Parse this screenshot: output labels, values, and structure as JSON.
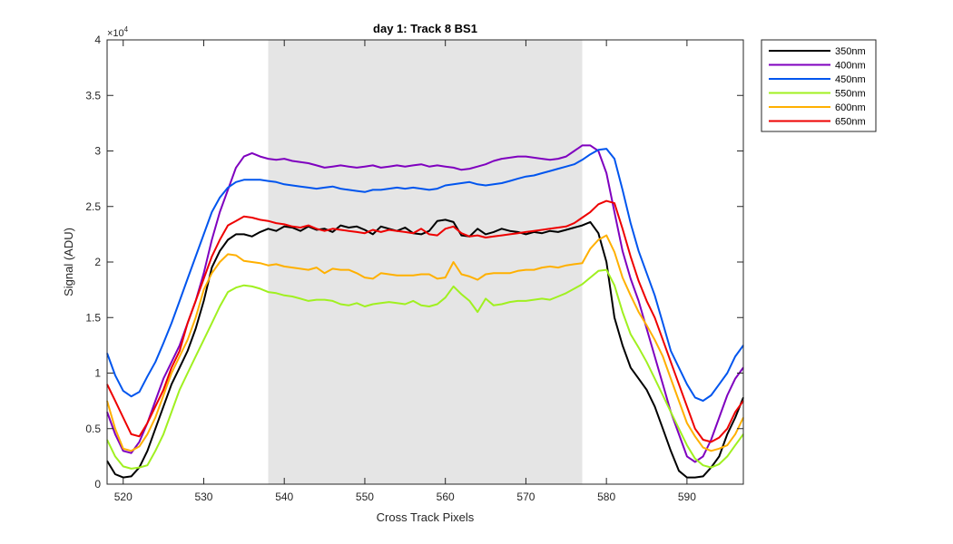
{
  "chart_data": {
    "type": "line",
    "title": "day 1: Track 8  BS1",
    "xlabel": "Cross Track Pixels",
    "ylabel": "Signal (ADU)",
    "y_multiplier_label": "×10",
    "y_multiplier_exponent": "4",
    "xlim": [
      518,
      597
    ],
    "ylim": [
      0,
      40000
    ],
    "x_ticks": [
      520,
      530,
      540,
      550,
      560,
      570,
      580,
      590
    ],
    "y_ticks": [
      0,
      5000,
      10000,
      15000,
      20000,
      25000,
      30000,
      35000,
      40000
    ],
    "y_tick_labels": [
      "0",
      "0.5",
      "1",
      "1.5",
      "2",
      "2.5",
      "3",
      "3.5",
      "4"
    ],
    "grid": false,
    "legend_position": "outside-right-top",
    "shaded_region": {
      "x_start": 538,
      "x_end": 577,
      "color": "#e5e5e5"
    },
    "x": [
      518,
      519,
      520,
      521,
      522,
      523,
      524,
      525,
      526,
      527,
      528,
      529,
      530,
      531,
      532,
      533,
      534,
      535,
      536,
      537,
      538,
      539,
      540,
      541,
      542,
      543,
      544,
      545,
      546,
      547,
      548,
      549,
      550,
      551,
      552,
      553,
      554,
      555,
      556,
      557,
      558,
      559,
      560,
      561,
      562,
      563,
      564,
      565,
      566,
      567,
      568,
      569,
      570,
      571,
      572,
      573,
      574,
      575,
      576,
      577,
      578,
      579,
      580,
      581,
      582,
      583,
      584,
      585,
      586,
      587,
      588,
      589,
      590,
      591,
      592,
      593,
      594,
      595,
      596,
      597
    ],
    "series": [
      {
        "name": "350nm",
        "color": "#000000",
        "values": [
          2100,
          900,
          600,
          700,
          1500,
          3000,
          5000,
          7000,
          9000,
          10500,
          12000,
          14000,
          16500,
          19500,
          21000,
          22000,
          22500,
          22500,
          22300,
          22700,
          23000,
          22800,
          23200,
          23100,
          22800,
          23200,
          22900,
          23000,
          22700,
          23300,
          23100,
          23200,
          22900,
          22500,
          23200,
          23000,
          22800,
          23100,
          22600,
          22500,
          22800,
          23700,
          23800,
          23600,
          22400,
          22300,
          23000,
          22500,
          22700,
          23000,
          22800,
          22700,
          22500,
          22700,
          22600,
          22800,
          22700,
          22900,
          23100,
          23300,
          23600,
          22600,
          20000,
          15000,
          12500,
          10500,
          9500,
          8500,
          7000,
          5000,
          3000,
          1200,
          600,
          600,
          700,
          1500,
          2500,
          4500,
          6000,
          7800
        ]
      },
      {
        "name": "400nm",
        "color": "#7f00bf",
        "values": [
          6500,
          4500,
          3000,
          2800,
          3800,
          5500,
          7500,
          9500,
          11000,
          12500,
          14500,
          16500,
          19000,
          22000,
          24500,
          26500,
          28500,
          29500,
          29800,
          29500,
          29300,
          29200,
          29300,
          29100,
          29000,
          28900,
          28700,
          28500,
          28600,
          28700,
          28600,
          28500,
          28600,
          28700,
          28500,
          28600,
          28700,
          28600,
          28700,
          28800,
          28600,
          28700,
          28600,
          28500,
          28300,
          28400,
          28600,
          28800,
          29100,
          29300,
          29400,
          29500,
          29500,
          29400,
          29300,
          29200,
          29300,
          29500,
          30000,
          30500,
          30500,
          30000,
          28000,
          24500,
          21000,
          18500,
          16500,
          14000,
          11500,
          9000,
          6500,
          4500,
          2500,
          2000,
          2500,
          4000,
          6000,
          8000,
          9500,
          10500
        ]
      },
      {
        "name": "450nm",
        "color": "#0055ee",
        "values": [
          11800,
          9800,
          8400,
          7900,
          8300,
          9700,
          11000,
          12700,
          14500,
          16500,
          18500,
          20500,
          22500,
          24500,
          25800,
          26700,
          27200,
          27400,
          27400,
          27400,
          27300,
          27200,
          27000,
          26900,
          26800,
          26700,
          26600,
          26700,
          26800,
          26600,
          26500,
          26400,
          26300,
          26500,
          26500,
          26600,
          26700,
          26600,
          26700,
          26600,
          26500,
          26600,
          26900,
          27000,
          27100,
          27200,
          27000,
          26900,
          27000,
          27100,
          27300,
          27500,
          27700,
          27800,
          28000,
          28200,
          28400,
          28600,
          28800,
          29200,
          29700,
          30100,
          30200,
          29300,
          26500,
          23500,
          21000,
          19000,
          17000,
          14500,
          12000,
          10500,
          9000,
          7800,
          7500,
          8000,
          9000,
          10000,
          11500,
          12500
        ]
      },
      {
        "name": "550nm",
        "color": "#a0f020",
        "values": [
          4000,
          2500,
          1600,
          1400,
          1500,
          1700,
          3000,
          4500,
          6500,
          8500,
          10000,
          11500,
          13000,
          14500,
          16000,
          17300,
          17700,
          17900,
          17800,
          17600,
          17300,
          17200,
          17000,
          16900,
          16700,
          16500,
          16600,
          16600,
          16500,
          16200,
          16100,
          16300,
          16000,
          16200,
          16300,
          16400,
          16300,
          16200,
          16500,
          16100,
          16000,
          16200,
          16800,
          17800,
          17100,
          16500,
          15500,
          16700,
          16100,
          16200,
          16400,
          16500,
          16500,
          16600,
          16700,
          16600,
          16900,
          17200,
          17600,
          18000,
          18600,
          19200,
          19300,
          17900,
          15500,
          13500,
          12300,
          11000,
          9500,
          8000,
          6500,
          5000,
          3500,
          2300,
          1700,
          1500,
          1800,
          2500,
          3500,
          4500
        ]
      },
      {
        "name": "600nm",
        "color": "#ffb000",
        "values": [
          7500,
          5000,
          3200,
          3000,
          3400,
          4500,
          6000,
          8000,
          10000,
          11500,
          13000,
          15000,
          17500,
          19000,
          20000,
          20700,
          20600,
          20100,
          20000,
          19900,
          19700,
          19800,
          19600,
          19500,
          19400,
          19300,
          19500,
          19000,
          19400,
          19300,
          19300,
          19000,
          18600,
          18500,
          19000,
          18900,
          18800,
          18800,
          18800,
          18900,
          18900,
          18500,
          18600,
          20000,
          18900,
          18700,
          18400,
          18900,
          19000,
          19000,
          19000,
          19200,
          19300,
          19300,
          19500,
          19600,
          19500,
          19700,
          19800,
          19900,
          21200,
          22000,
          22400,
          20900,
          18600,
          17000,
          15500,
          14300,
          13000,
          11500,
          9500,
          7500,
          5500,
          4300,
          3300,
          3000,
          3200,
          3500,
          4500,
          6000
        ]
      },
      {
        "name": "650nm",
        "color": "#ee0000",
        "values": [
          9000,
          7500,
          6000,
          4500,
          4300,
          5500,
          7000,
          8500,
          10500,
          12000,
          14500,
          16500,
          18500,
          20500,
          22000,
          23300,
          23700,
          24100,
          24000,
          23800,
          23700,
          23500,
          23400,
          23200,
          23100,
          23300,
          23000,
          22800,
          23000,
          22900,
          22800,
          22700,
          22600,
          22900,
          22700,
          22900,
          22800,
          22700,
          22600,
          23000,
          22500,
          22400,
          23000,
          23200,
          22600,
          22300,
          22400,
          22200,
          22300,
          22400,
          22500,
          22600,
          22700,
          22800,
          22900,
          23000,
          23100,
          23200,
          23500,
          24000,
          24500,
          25200,
          25500,
          25300,
          23000,
          20500,
          18300,
          16500,
          15000,
          13000,
          11000,
          9000,
          7000,
          5000,
          4000,
          3800,
          4200,
          5000,
          6500,
          7500
        ]
      }
    ]
  }
}
